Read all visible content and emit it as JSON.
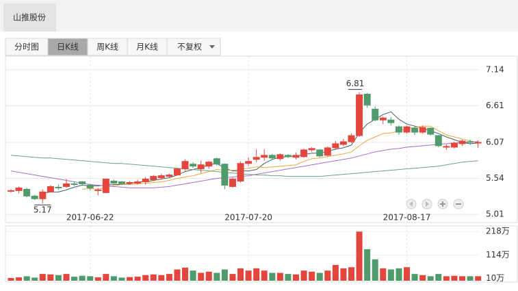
{
  "header": {
    "tab": "山推股份"
  },
  "toolbar": {
    "buttons": [
      "分时图",
      "日K线",
      "周K线",
      "月K线",
      "不复权"
    ],
    "active": 1
  },
  "chart_data": {
    "type": "candlestick",
    "up_color": "#e3463c",
    "down_color": "#4f9b6c",
    "categories": [
      null,
      null,
      null,
      null,
      null,
      null,
      null,
      null,
      null,
      null,
      "2017-06-22",
      null,
      null,
      null,
      null,
      null,
      null,
      null,
      null,
      null,
      null,
      null,
      null,
      null,
      null,
      null,
      null,
      null,
      null,
      null,
      "2017-07-20",
      null,
      null,
      null,
      null,
      null,
      null,
      null,
      null,
      null,
      null,
      null,
      null,
      null,
      null,
      null,
      null,
      null,
      null,
      null,
      "2017-08-17",
      null,
      null,
      null,
      null,
      null,
      null,
      null,
      null,
      null
    ],
    "open": [
      5.35,
      5.36,
      5.38,
      5.28,
      5.24,
      5.34,
      5.41,
      5.42,
      5.46,
      5.49,
      5.44,
      5.36,
      5.33,
      5.5,
      5.49,
      5.47,
      5.47,
      5.49,
      5.52,
      5.55,
      5.57,
      5.59,
      5.68,
      5.75,
      5.68,
      5.72,
      5.83,
      5.75,
      5.42,
      5.5,
      5.76,
      5.82,
      5.85,
      5.88,
      5.83,
      5.88,
      5.85,
      5.86,
      5.96,
      5.96,
      5.88,
      5.99,
      6.04,
      6.08,
      6.17,
      6.78,
      6.56,
      6.4,
      6.4,
      6.3,
      6.22,
      6.28,
      6.22,
      6.28,
      6.17,
      6.0,
      6.0,
      6.05,
      6.08,
      6.06
    ],
    "high": [
      5.38,
      5.42,
      5.4,
      5.3,
      5.38,
      5.44,
      5.45,
      5.53,
      5.49,
      5.5,
      5.46,
      5.4,
      5.53,
      5.52,
      5.5,
      5.5,
      5.52,
      5.56,
      5.59,
      5.61,
      5.61,
      5.7,
      5.82,
      5.78,
      5.8,
      5.8,
      5.85,
      5.76,
      5.55,
      5.79,
      5.85,
      5.97,
      5.97,
      5.9,
      5.91,
      5.9,
      5.92,
      5.98,
      6.0,
      5.97,
      6.01,
      6.09,
      6.12,
      6.2,
      6.81,
      6.8,
      6.6,
      6.45,
      6.44,
      6.32,
      6.32,
      6.3,
      6.32,
      6.29,
      6.18,
      6.04,
      6.08,
      6.11,
      6.11,
      6.1
    ],
    "low": [
      5.33,
      5.32,
      5.26,
      5.22,
      5.17,
      5.33,
      5.37,
      5.4,
      5.43,
      5.43,
      5.36,
      5.29,
      5.33,
      5.44,
      5.44,
      5.46,
      5.45,
      5.45,
      5.5,
      5.52,
      5.55,
      5.58,
      5.65,
      5.69,
      5.62,
      5.68,
      5.73,
      5.38,
      5.4,
      5.48,
      5.72,
      5.78,
      5.8,
      5.82,
      5.8,
      5.84,
      5.82,
      5.84,
      5.93,
      5.85,
      5.86,
      5.96,
      6.01,
      6.06,
      6.15,
      6.58,
      6.38,
      6.34,
      6.32,
      6.18,
      6.2,
      6.18,
      6.2,
      6.17,
      6.0,
      5.96,
      5.98,
      6.02,
      6.03,
      5.99
    ],
    "close": [
      5.36,
      5.4,
      5.28,
      5.24,
      5.34,
      5.42,
      5.4,
      5.46,
      5.45,
      5.46,
      5.4,
      5.37,
      5.53,
      5.47,
      5.46,
      5.48,
      5.49,
      5.53,
      5.57,
      5.58,
      5.59,
      5.68,
      5.79,
      5.72,
      5.74,
      5.78,
      5.75,
      5.44,
      5.53,
      5.76,
      5.79,
      5.85,
      5.88,
      5.84,
      5.89,
      5.86,
      5.88,
      5.96,
      5.98,
      5.87,
      5.99,
      6.05,
      6.08,
      6.17,
      6.77,
      6.62,
      6.4,
      6.43,
      6.36,
      6.22,
      6.3,
      6.22,
      6.29,
      6.19,
      6.02,
      6.01,
      6.06,
      6.09,
      6.07,
      6.07
    ],
    "series": [
      {
        "color": "#3f5f6e",
        "values": [
          null,
          null,
          null,
          null,
          5.32,
          5.34,
          5.34,
          5.37,
          5.41,
          5.44,
          5.43,
          5.43,
          5.44,
          5.45,
          5.45,
          5.46,
          5.49,
          5.49,
          5.51,
          5.53,
          5.55,
          5.59,
          5.64,
          5.67,
          5.7,
          5.74,
          5.76,
          5.69,
          5.65,
          5.65,
          5.65,
          5.67,
          5.76,
          5.82,
          5.85,
          5.86,
          5.87,
          5.89,
          5.91,
          5.91,
          5.94,
          5.97,
          5.99,
          6.03,
          6.21,
          6.34,
          6.41,
          6.48,
          6.52,
          6.41,
          6.34,
          6.31,
          6.28,
          6.24,
          6.2,
          6.15,
          6.11,
          6.07,
          6.05,
          6.06
        ]
      },
      {
        "color": "#f0a640",
        "values": [
          null,
          null,
          null,
          null,
          null,
          null,
          null,
          null,
          null,
          5.38,
          5.39,
          5.38,
          5.41,
          5.43,
          5.45,
          5.45,
          5.46,
          5.47,
          5.48,
          5.49,
          5.51,
          5.54,
          5.56,
          5.58,
          5.61,
          5.64,
          5.67,
          5.66,
          5.66,
          5.67,
          5.69,
          5.71,
          5.7,
          5.71,
          5.72,
          5.73,
          5.74,
          5.79,
          5.83,
          5.84,
          5.86,
          5.88,
          5.9,
          5.93,
          6.02,
          6.1,
          6.15,
          6.2,
          6.21,
          6.24,
          6.27,
          6.29,
          6.31,
          6.31,
          6.24,
          6.18,
          6.15,
          6.12,
          6.09,
          6.07
        ]
      },
      {
        "color": "#a86cc8",
        "values": [
          5.65,
          5.63,
          5.61,
          5.59,
          5.57,
          5.55,
          5.53,
          5.51,
          5.49,
          5.47,
          5.45,
          5.44,
          5.43,
          5.42,
          5.41,
          5.4,
          5.4,
          5.4,
          5.4,
          5.41,
          5.42,
          5.44,
          5.46,
          5.48,
          5.5,
          5.52,
          5.54,
          5.55,
          5.56,
          5.57,
          5.58,
          5.6,
          5.62,
          5.64,
          5.66,
          5.68,
          5.7,
          5.72,
          5.74,
          5.76,
          5.78,
          5.8,
          5.82,
          5.84,
          5.87,
          5.9,
          5.93,
          5.95,
          5.97,
          5.98,
          6.0,
          6.01,
          6.02,
          6.03,
          6.04,
          6.05,
          6.06,
          6.07,
          6.08,
          6.08
        ]
      },
      {
        "color": "#6aa384",
        "values": [
          5.88,
          5.87,
          5.86,
          5.85,
          5.84,
          5.84,
          5.83,
          5.82,
          5.81,
          5.8,
          5.79,
          5.78,
          5.77,
          5.76,
          5.76,
          5.75,
          5.74,
          5.73,
          5.72,
          5.71,
          5.7,
          5.69,
          5.68,
          5.67,
          5.66,
          5.65,
          5.64,
          5.63,
          5.62,
          5.61,
          5.6,
          5.59,
          5.59,
          5.58,
          5.58,
          5.57,
          5.57,
          5.57,
          5.57,
          5.57,
          5.58,
          5.59,
          5.6,
          5.61,
          5.62,
          5.63,
          5.64,
          5.65,
          5.66,
          5.67,
          5.68,
          5.69,
          5.7,
          5.71,
          5.72,
          5.74,
          5.76,
          5.78,
          5.79,
          5.8
        ]
      }
    ],
    "ylim": [
      4.89,
      7.34
    ],
    "yticks": [
      7.14,
      6.61,
      6.07,
      5.54,
      5.01
    ],
    "grid": true,
    "volume": {
      "values": [
        12,
        15,
        20,
        14,
        30,
        28,
        25,
        30,
        18,
        22,
        20,
        15,
        30,
        20,
        14,
        16,
        18,
        25,
        28,
        25,
        30,
        50,
        58,
        45,
        35,
        40,
        35,
        50,
        30,
        55,
        45,
        55,
        45,
        35,
        35,
        30,
        28,
        45,
        40,
        35,
        45,
        70,
        55,
        60,
        218,
        140,
        95,
        55,
        50,
        55,
        60,
        30,
        25,
        20,
        30,
        20,
        22,
        20,
        20,
        20
      ],
      "ylim": [
        0,
        240
      ],
      "yticks": [
        {
          "value": 218,
          "label": "218万"
        },
        {
          "value": 114,
          "label": "114万"
        },
        {
          "value": 10,
          "label": "10万"
        }
      ]
    }
  }
}
